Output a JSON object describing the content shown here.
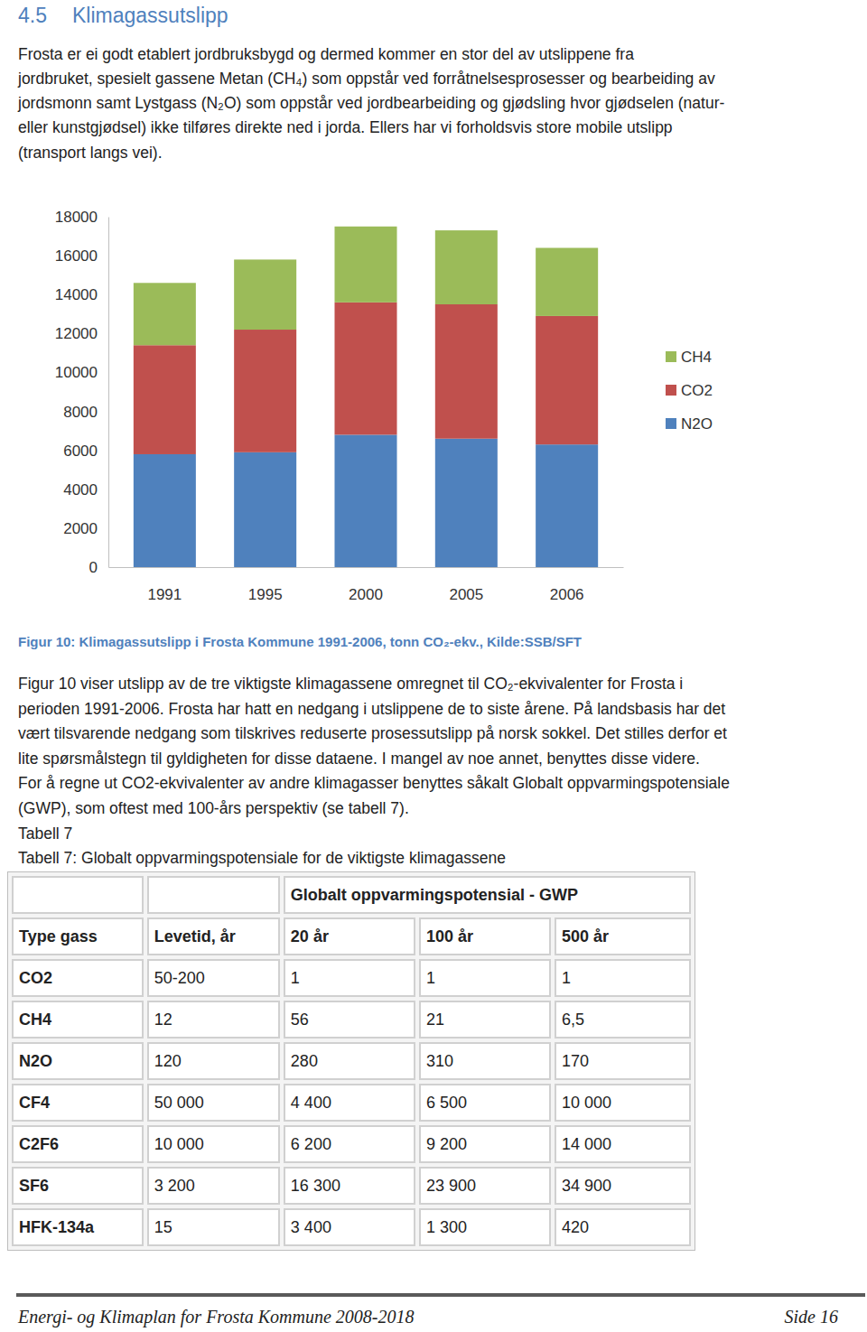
{
  "heading": {
    "number": "4.5",
    "title": "Klimagassutslipp"
  },
  "paragraphs": [
    {
      "lines": [
        "Frosta er ei godt etablert jordbruksbygd og dermed kommer en stor del av utslippene fra",
        "jordbruket, spesielt gassene Metan (CH₄) som oppstår ved forråtnelsesprosesser og bearbeiding av",
        "jordsmonn samt Lystgass (N₂O) som oppstår ved jordbearbeiding og gjødsling hvor gjødselen (natur-",
        "eller kunstgjødsel) ikke tilføres direkte ned i jorda. Ellers har vi forholdsvis store mobile utslipp",
        "(transport langs vei)."
      ]
    },
    {
      "lines": [
        "Figur 10 viser utslipp av de tre viktigste klimagassene omregnet til CO₂-ekvivalenter for Frosta i",
        "perioden 1991-2006. Frosta har hatt en nedgang i utslippene de to siste årene. På landsbasis har det",
        "vært tilsvarende nedgang som tilskrives reduserte prosessutslipp på norsk sokkel. Det stilles derfor et",
        "lite spørsmålstegn til gyldigheten for disse dataene. I mangel av noe annet, benyttes disse videre.",
        "For å regne ut CO2-ekvivalenter av andre klimagasser benyttes såkalt Globalt oppvarmingspotensiale",
        "(GWP), som oftest med 100-års perspektiv (se tabell 7).",
        "Tabell 7",
        "Tabell 7: Globalt oppvarmingspotensiale for de viktigste klimagassene"
      ]
    }
  ],
  "chart_data": {
    "type": "bar",
    "stacked": true,
    "categories": [
      "1991",
      "1995",
      "2000",
      "2005",
      "2006"
    ],
    "series": [
      {
        "name": "N2O",
        "color": "#4f81bd",
        "values": [
          5800,
          5900,
          6800,
          6600,
          6300
        ]
      },
      {
        "name": "CO2",
        "color": "#c0504d",
        "values": [
          5600,
          6300,
          6800,
          6900,
          6600
        ]
      },
      {
        "name": "CH4",
        "color": "#9bbb59",
        "values": [
          3200,
          3600,
          3900,
          3800,
          3500
        ]
      }
    ],
    "ylim": [
      0,
      18000
    ],
    "yticks": [
      0,
      2000,
      4000,
      6000,
      8000,
      10000,
      12000,
      14000,
      16000,
      18000
    ],
    "grid": false,
    "legend": "right"
  },
  "figure_caption": "Figur 10: Klimagassutslipp i Frosta Kommune 1991-2006, tonn CO₂-ekv., Kilde:SSB/SFT",
  "table": {
    "header": "Globalt oppvarmingspotensial - GWP",
    "columns": [
      "Type gass",
      "Levetid, år",
      "20 år",
      "100 år",
      "500 år"
    ],
    "rows": [
      [
        "CO2",
        "50-200",
        "1",
        "1",
        "1"
      ],
      [
        "CH4",
        "12",
        "56",
        "21",
        "6,5"
      ],
      [
        "N2O",
        "120",
        "280",
        "310",
        "170"
      ],
      [
        "CF4",
        "50 000",
        "4 400",
        "6 500",
        "10 000"
      ],
      [
        "C2F6",
        "10 000",
        "6 200",
        "9 200",
        "14 000"
      ],
      [
        "SF6",
        "3 200",
        "16 300",
        "23 900",
        "34 900"
      ],
      [
        "HFK-134a",
        "15",
        "3 400",
        "1 300",
        "420"
      ]
    ]
  },
  "footer": {
    "title": "Energi- og Klimaplan for Frosta Kommune 2008-2018",
    "page": "Side 16"
  }
}
